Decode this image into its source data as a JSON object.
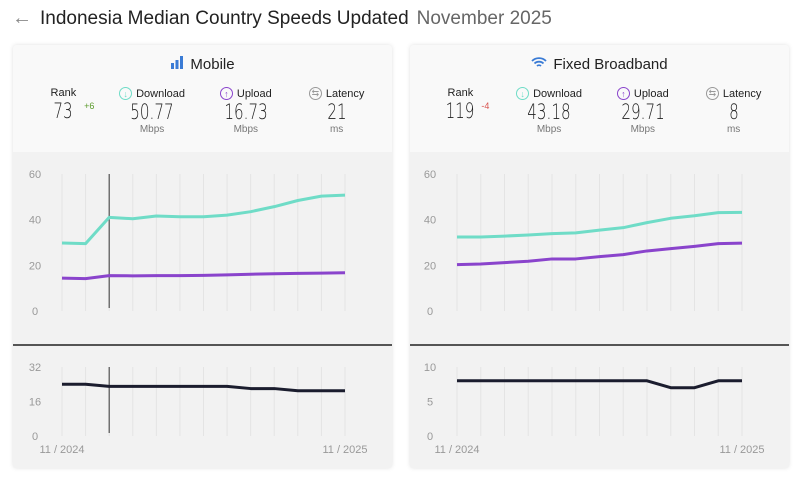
{
  "header": {
    "title": "Indonesia Median Country Speeds Updated",
    "date": "November 2025"
  },
  "colors": {
    "download": "#6fdcc7",
    "upload": "#8a44cc",
    "latency": "#1b1d2e",
    "rank_up": "#5a9a2a",
    "rank_down": "#d9534f"
  },
  "cards": [
    {
      "title": "Mobile",
      "icon": "signal-bars-icon",
      "rank": {
        "label": "Rank",
        "value": "73",
        "delta": "+6"
      },
      "download": {
        "label": "Download",
        "value": "50.77",
        "unit": "Mbps"
      },
      "upload": {
        "label": "Upload",
        "value": "16.73",
        "unit": "Mbps"
      },
      "latency": {
        "label": "Latency",
        "value": "21",
        "unit": "ms"
      }
    },
    {
      "title": "Fixed Broadband",
      "icon": "wifi-icon",
      "rank": {
        "label": "Rank",
        "value": "119",
        "delta": "-4"
      },
      "download": {
        "label": "Download",
        "value": "43.18",
        "unit": "Mbps"
      },
      "upload": {
        "label": "Upload",
        "value": "29.71",
        "unit": "Mbps"
      },
      "latency": {
        "label": "Latency",
        "value": "8",
        "unit": "ms"
      }
    }
  ],
  "chart_data": [
    {
      "type": "line",
      "chart": "mobile-speed",
      "ylim": [
        0,
        60
      ],
      "yticks": [
        "0",
        "20",
        "40",
        "60"
      ],
      "x_start": "11 / 2024",
      "x_end": "11 / 2025",
      "hover_index": 2,
      "series": [
        {
          "values": [
            29.8,
            29.5,
            41,
            40.4,
            41.6,
            41.3,
            41.3,
            42,
            43.5,
            45.7,
            48.4,
            50.3,
            50.77
          ]
        },
        {
          "values": [
            14.4,
            14.2,
            15.5,
            15.4,
            15.5,
            15.5,
            15.6,
            15.8,
            16.1,
            16.3,
            16.5,
            16.6,
            16.73
          ]
        }
      ]
    },
    {
      "type": "line",
      "chart": "mobile-latency",
      "ylim": [
        0,
        32
      ],
      "yticks": [
        "0",
        "16",
        "32"
      ],
      "x_start": "11 / 2024",
      "x_end": "11 / 2025",
      "hover_index": 2,
      "series": [
        {
          "values": [
            24,
            24,
            23,
            23,
            23,
            23,
            23,
            23,
            22,
            22,
            21,
            21,
            21
          ]
        }
      ]
    },
    {
      "type": "line",
      "chart": "fixed-speed",
      "ylim": [
        0,
        60
      ],
      "yticks": [
        "0",
        "20",
        "40",
        "60"
      ],
      "x_start": "11 / 2024",
      "x_end": "11 / 2025",
      "series": [
        {
          "values": [
            32.4,
            32.4,
            32.8,
            33.3,
            33.9,
            34.2,
            35.4,
            36.5,
            38.7,
            40.6,
            41.7,
            43.1,
            43.18
          ]
        },
        {
          "values": [
            20.3,
            20.6,
            21.2,
            21.8,
            22.8,
            22.8,
            23.8,
            24.7,
            26.3,
            27.3,
            28.3,
            29.5,
            29.71
          ]
        }
      ]
    },
    {
      "type": "line",
      "chart": "fixed-latency",
      "ylim": [
        0,
        10
      ],
      "yticks": [
        "0",
        "5",
        "10"
      ],
      "x_start": "11 / 2024",
      "x_end": "11 / 2025",
      "series": [
        {
          "values": [
            8,
            8,
            8,
            8,
            8,
            8,
            8,
            8,
            8,
            7,
            7,
            8,
            8
          ]
        }
      ]
    }
  ]
}
